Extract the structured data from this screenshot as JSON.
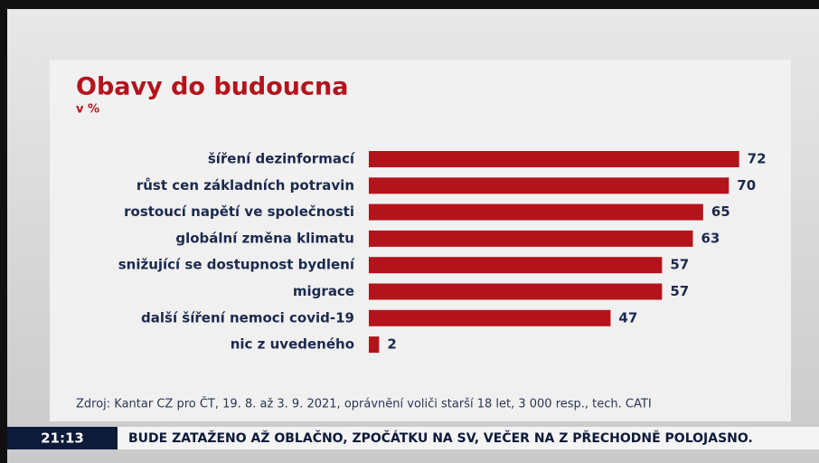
{
  "chart_data": {
    "type": "bar",
    "orientation": "horizontal",
    "title": "Obavy do budoucna",
    "subtitle": "v %",
    "categories": [
      "šíření dezinformací",
      "růst cen základních potravin",
      "rostoucí napětí ve společnosti",
      "globální změna klimatu",
      "snižující se dostupnost bydlení",
      "migrace",
      "další šíření nemoci covid-19",
      "nic z uvedeného"
    ],
    "values": [
      72,
      70,
      65,
      63,
      57,
      57,
      47,
      2
    ],
    "color": "#b3141c",
    "source": "Zdroj: Kantar CZ pro ČT, 19. 8. až 3. 9. 2021, oprávnění voliči starší 18 let, 3 000 resp., tech. CATI"
  },
  "ticker": {
    "time": "21:13",
    "text": "BUDE ZATAŽENO AŽ OBLAČNO, ZPOČÁTKU NA SV, VEČER NA Z PŘECHODNĚ POLOJASNO."
  }
}
